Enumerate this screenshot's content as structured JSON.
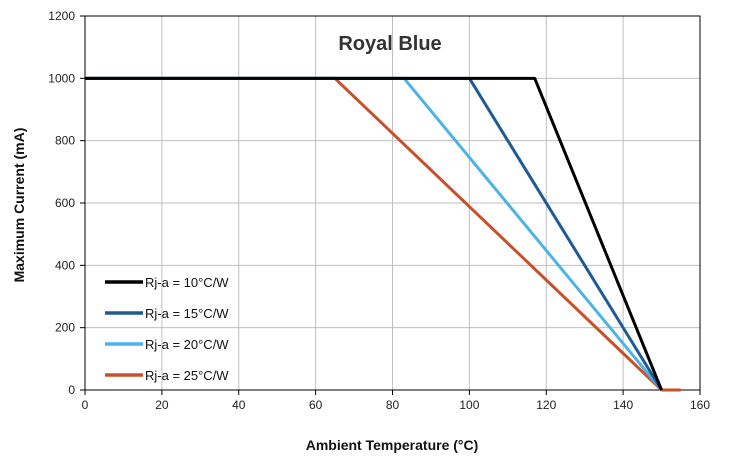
{
  "chart_data": {
    "type": "line",
    "title": "Royal Blue",
    "xlabel": "Ambient Temperature (°C)",
    "ylabel": "Maximum Current (mA)",
    "xlim": [
      0,
      160
    ],
    "ylim": [
      0,
      1200
    ],
    "xticks": [
      0,
      20,
      40,
      60,
      80,
      100,
      120,
      140,
      160
    ],
    "yticks": [
      0,
      200,
      400,
      600,
      800,
      1000,
      1200
    ],
    "grid": true,
    "legend_position": "bottom-left",
    "series": [
      {
        "name": "Rj-a = 10°C/W",
        "color": "#000000",
        "x": [
          0,
          117,
          150
        ],
        "y": [
          1000,
          1000,
          0
        ]
      },
      {
        "name": "Rj-a = 15°C/W",
        "color": "#1f5a96",
        "x": [
          0,
          100,
          150
        ],
        "y": [
          1000,
          1000,
          0
        ]
      },
      {
        "name": "Rj-a = 20°C/W",
        "color": "#4db3e6",
        "x": [
          0,
          83,
          150
        ],
        "y": [
          1000,
          1000,
          0
        ]
      },
      {
        "name": "Rj-a = 25°C/W",
        "color": "#c8502a",
        "x": [
          0,
          65,
          150,
          155
        ],
        "y": [
          1000,
          1000,
          0,
          0
        ]
      }
    ]
  }
}
